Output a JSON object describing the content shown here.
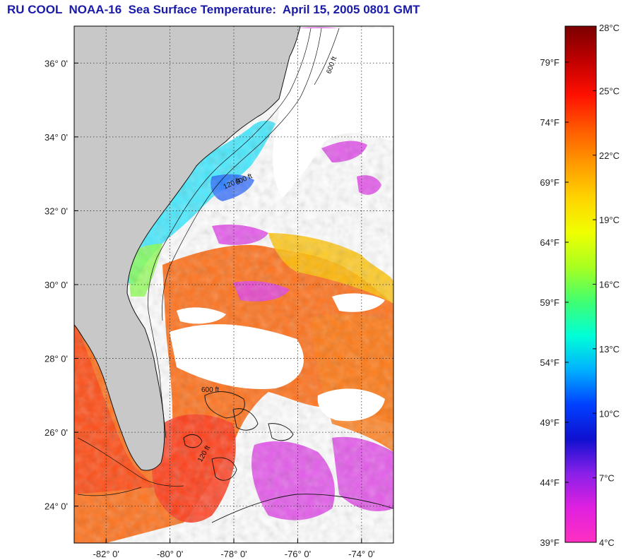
{
  "title": "RU COOL  NOAA-16  Sea Surface Temperature:  April 15, 2005 0801 GMT",
  "map": {
    "lon_range": [
      -83.0,
      -73.0
    ],
    "lat_range": [
      23.0,
      37.0
    ],
    "lon_ticks": [
      {
        "value": -82,
        "label": "-82° 0'"
      },
      {
        "value": -80,
        "label": "-80° 0'"
      },
      {
        "value": -78,
        "label": "-78° 0'"
      },
      {
        "value": -76,
        "label": "-76° 0'"
      },
      {
        "value": -74,
        "label": "-74° 0'"
      }
    ],
    "lat_ticks": [
      {
        "value": 36,
        "label": "36° 0'"
      },
      {
        "value": 34,
        "label": "34° 0'"
      },
      {
        "value": 32,
        "label": "32° 0'"
      },
      {
        "value": 30,
        "label": "30° 0'"
      },
      {
        "value": 28,
        "label": "28° 0'"
      },
      {
        "value": 26,
        "label": "26° 0'"
      },
      {
        "value": 24,
        "label": "24° 0'"
      }
    ],
    "gridlines": "dotted",
    "land_color": "#c8c8c8",
    "cloud_color": "#ffffff",
    "contour_labels": [
      "600 ft",
      "120 ft",
      "600 ft",
      "600 ft",
      "120 ft"
    ]
  },
  "colorbar": {
    "celsius_range": [
      4,
      28
    ],
    "fahrenheit_range": [
      39,
      82
    ],
    "celsius_labels": [
      "28°C",
      "25°C",
      "22°C",
      "19°C",
      "16°C",
      "13°C",
      "10°C",
      "7°C",
      "4°C"
    ],
    "fahrenheit_labels": [
      "79°F",
      "74°F",
      "69°F",
      "64°F",
      "59°F",
      "54°F",
      "49°F",
      "44°F",
      "39°F"
    ],
    "fahrenheit_values": [
      79,
      74,
      69,
      64,
      59,
      54,
      49,
      44,
      39
    ],
    "gradient": [
      "#7a0000",
      "#c00000",
      "#ff1000",
      "#ff5a00",
      "#ff9a00",
      "#ffd400",
      "#f0ff00",
      "#a8ff20",
      "#40ff70",
      "#00ffd8",
      "#00b0ff",
      "#0040ff",
      "#1010d0",
      "#8a20e8",
      "#e020e0",
      "#ff30c0"
    ]
  }
}
